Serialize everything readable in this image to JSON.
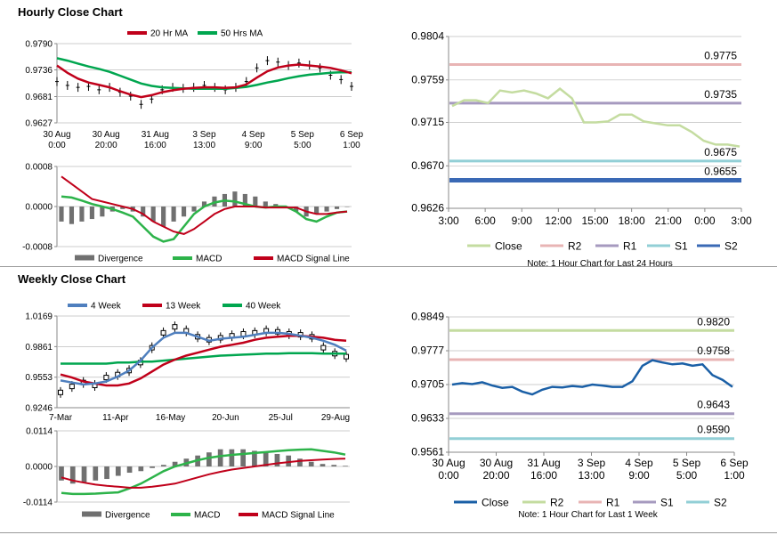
{
  "sections": {
    "hourly_title": "Hourly Close Chart",
    "weekly_title": "Weekly Close Chart"
  },
  "colors": {
    "ma_short": "#c0001a",
    "ma_long": "#00a64f",
    "ma_4wk": "#4f7fbe",
    "macd": "#2db34a",
    "signal": "#c0001a",
    "divergence": "#707070",
    "close": "#c4dca0",
    "r2": "#e8b4b4",
    "r1": "#a69abf",
    "s1": "#92cfd6",
    "s2": "#3a69b5",
    "weekly_close": "#1a5fa6",
    "weekly_r2": "#c4dca0",
    "weekly_r1": "#e8b4b4",
    "weekly_s1": "#a69abf",
    "weekly_s2": "#92cfd6"
  },
  "chart_data": [
    {
      "id": "hourly_price",
      "type": "line",
      "title": "Hourly Close Chart",
      "legend": [
        "20 Hr MA",
        "50 Hrs MA"
      ],
      "yticks": [
        "0.9790",
        "0.9736",
        "0.9681",
        "0.9627"
      ],
      "ylim": [
        0.9627,
        0.979
      ],
      "xticks": [
        [
          "30 Aug",
          "0:00"
        ],
        [
          "30 Aug",
          "20:00"
        ],
        [
          "31 Aug",
          "16:00"
        ],
        [
          "3 Sep",
          "13:00"
        ],
        [
          "4 Sep",
          "9:00"
        ],
        [
          "5 Sep",
          "5:00"
        ],
        [
          "6 Sep",
          "1:00"
        ]
      ],
      "series": [
        {
          "name": "Close",
          "values": [
            0.9712,
            0.9704,
            0.97,
            0.9702,
            0.9695,
            0.97,
            0.969,
            0.9682,
            0.9665,
            0.9676,
            0.9695,
            0.97,
            0.9698,
            0.97,
            0.9704,
            0.97,
            0.9695,
            0.97,
            0.9712,
            0.974,
            0.9755,
            0.9752,
            0.9745,
            0.975,
            0.9746,
            0.974,
            0.9725,
            0.9716,
            0.9702
          ]
        },
        {
          "name": "20 Hr MA",
          "values": [
            0.9745,
            0.973,
            0.9718,
            0.971,
            0.9705,
            0.97,
            0.9692,
            0.9685,
            0.968,
            0.9684,
            0.969,
            0.9694,
            0.9697,
            0.9699,
            0.97,
            0.97,
            0.9699,
            0.97,
            0.9706,
            0.972,
            0.9733,
            0.9741,
            0.9745,
            0.9747,
            0.9745,
            0.9743,
            0.974,
            0.9735,
            0.9729
          ]
        },
        {
          "name": "50 Hrs MA",
          "values": [
            0.976,
            0.9755,
            0.9749,
            0.9743,
            0.9738,
            0.9732,
            0.9724,
            0.9716,
            0.9708,
            0.9703,
            0.97,
            0.9699,
            0.9698,
            0.9697,
            0.9697,
            0.9697,
            0.9697,
            0.9699,
            0.9701,
            0.9705,
            0.971,
            0.9714,
            0.9719,
            0.9723,
            0.9726,
            0.9728,
            0.973,
            0.9731,
            0.9731
          ]
        }
      ]
    },
    {
      "id": "hourly_macd",
      "type": "bar+line",
      "legend": [
        "Divergence",
        "MACD",
        "MACD Signal Line"
      ],
      "yticks": [
        "0.0008",
        "0.0000",
        "-0.0008"
      ],
      "ylim": [
        -0.0008,
        0.0008
      ],
      "series": [
        {
          "name": "Divergence",
          "values": [
            -0.0003,
            -0.00035,
            -0.0003,
            -0.00025,
            -0.0002,
            -0.0001,
            -5e-05,
            -0.0001,
            -0.0002,
            -0.0003,
            -0.0004,
            -0.0003,
            -0.0002,
            -0.0001,
            0.0001,
            0.0002,
            0.00025,
            0.0003,
            0.00025,
            0.0002,
            0.0001,
            5e-05,
            0.0,
            -0.0001,
            -0.0002,
            -0.00015,
            -0.0001,
            -5e-05,
            0.0
          ]
        },
        {
          "name": "MACD",
          "values": [
            0.0002,
            0.00018,
            0.00012,
            5e-05,
            0.0,
            -5e-05,
            -0.00012,
            -0.0002,
            -0.0004,
            -0.0006,
            -0.0007,
            -0.00065,
            -0.0004,
            -0.00015,
            0.0,
            8e-05,
            0.00012,
            0.0001,
            5e-05,
            0.0,
            -2e-05,
            0.0,
            0.0,
            -0.0001,
            -0.00025,
            -0.0003,
            -0.0002,
            -0.00012,
            -0.0001
          ]
        },
        {
          "name": "MACD Signal Line",
          "values": [
            0.0006,
            0.00045,
            0.0003,
            0.00015,
            0.0001,
            5e-05,
            0.0,
            -5e-05,
            -0.00015,
            -0.0003,
            -0.0004,
            -0.0005,
            -0.00055,
            -0.00045,
            -0.0003,
            -0.00015,
            -5e-05,
            0.0,
            0.0,
            0.0,
            -2e-05,
            -2e-05,
            -2e-05,
            -2e-05,
            -0.0001,
            -0.00015,
            -0.00015,
            -0.00012,
            -0.0001
          ]
        }
      ]
    },
    {
      "id": "hourly_levels",
      "type": "line",
      "note": "Note: 1 Hour Chart for Last 24 Hours",
      "legend": [
        "Close",
        "R2",
        "R1",
        "S1",
        "S2"
      ],
      "yticks": [
        "0.9804",
        "0.9759",
        "0.9715",
        "0.9670",
        "0.9626"
      ],
      "ylim": [
        0.9626,
        0.9804
      ],
      "xticks": [
        "3:00",
        "6:00",
        "9:00",
        "12:00",
        "15:00",
        "18:00",
        "21:00",
        "0:00",
        "3:00"
      ],
      "x": [
        0,
        1,
        2,
        3,
        4,
        5,
        6,
        7,
        8,
        9,
        10,
        11,
        12,
        13,
        14,
        15,
        16,
        17,
        18,
        19,
        20,
        21,
        22,
        23,
        24
      ],
      "close": [
        0.9732,
        0.9738,
        0.9738,
        0.9735,
        0.9748,
        0.9746,
        0.9748,
        0.9745,
        0.974,
        0.975,
        0.974,
        0.9715,
        0.9715,
        0.9716,
        0.9723,
        0.9723,
        0.9716,
        0.9714,
        0.9712,
        0.9712,
        0.9705,
        0.9696,
        0.9692,
        0.9692,
        0.969
      ],
      "levels": [
        {
          "name": "R2",
          "value": 0.9775,
          "label": "0.9775"
        },
        {
          "name": "R1",
          "value": 0.9735,
          "label": "0.9735"
        },
        {
          "name": "S1",
          "value": 0.9675,
          "label": "0.9675"
        },
        {
          "name": "S2",
          "value": 0.9655,
          "label": "0.9655"
        }
      ]
    },
    {
      "id": "weekly_price",
      "type": "line",
      "title": "Weekly Close Chart",
      "legend": [
        "4 Week",
        "13 Week",
        "40 Week"
      ],
      "yticks": [
        "1.0169",
        "0.9861",
        "0.9553",
        "0.9246"
      ],
      "ylim": [
        0.9246,
        1.0169
      ],
      "xticks": [
        "7-Mar",
        "11-Apr",
        "16-May",
        "20-Jun",
        "25-Jul",
        "29-Aug"
      ],
      "series": [
        {
          "name": "Close",
          "values": [
            0.94,
            0.946,
            0.95,
            0.947,
            0.955,
            0.958,
            0.962,
            0.97,
            0.985,
            1.0,
            1.006,
            1.002,
            0.996,
            0.993,
            0.995,
            0.997,
            0.999,
            1.0,
            1.002,
            1.001,
            0.999,
            0.998,
            0.996,
            0.985,
            0.979,
            0.976
          ]
        },
        {
          "name": "4 Week",
          "values": [
            0.952,
            0.95,
            0.948,
            0.949,
            0.951,
            0.956,
            0.962,
            0.972,
            0.985,
            0.995,
            1.0,
            1.0,
            0.996,
            0.992,
            0.994,
            0.995,
            0.996,
            0.998,
            1.0,
            1.0,
            0.999,
            0.997,
            0.995,
            0.992,
            0.988,
            0.982
          ]
        },
        {
          "name": "13 Week",
          "values": [
            0.958,
            0.955,
            0.951,
            0.949,
            0.947,
            0.947,
            0.949,
            0.954,
            0.961,
            0.968,
            0.973,
            0.977,
            0.98,
            0.983,
            0.986,
            0.988,
            0.99,
            0.993,
            0.995,
            0.996,
            0.997,
            0.997,
            0.996,
            0.995,
            0.993,
            0.992
          ]
        },
        {
          "name": "40 Week",
          "values": [
            0.969,
            0.969,
            0.969,
            0.969,
            0.969,
            0.97,
            0.97,
            0.971,
            0.971,
            0.972,
            0.973,
            0.974,
            0.975,
            0.976,
            0.977,
            0.9775,
            0.978,
            0.9785,
            0.979,
            0.979,
            0.9795,
            0.9795,
            0.9795,
            0.979,
            0.979,
            0.979
          ]
        }
      ]
    },
    {
      "id": "weekly_macd",
      "type": "bar+line",
      "legend": [
        "Divergence",
        "MACD",
        "MACD Signal Line"
      ],
      "yticks": [
        "0.0114",
        "0.0000",
        "-0.0114"
      ],
      "ylim": [
        -0.0114,
        0.0114
      ],
      "series": [
        {
          "name": "Divergence",
          "values": [
            -0.0045,
            -0.0055,
            -0.005,
            -0.0045,
            -0.004,
            -0.003,
            -0.002,
            -0.0015,
            -0.0005,
            0.0005,
            0.0015,
            0.0025,
            0.0035,
            0.0045,
            0.0055,
            0.0055,
            0.0055,
            0.005,
            0.0045,
            0.004,
            0.0035,
            0.0025,
            0.0015,
            0.0008,
            0.0005,
            0.0002
          ]
        },
        {
          "name": "MACD",
          "values": [
            -0.0085,
            -0.0088,
            -0.0088,
            -0.0087,
            -0.0085,
            -0.0083,
            -0.007,
            -0.0055,
            -0.0035,
            -0.0015,
            0.0,
            0.001,
            0.002,
            0.0028,
            0.0033,
            0.0037,
            0.004,
            0.0043,
            0.0046,
            0.0049,
            0.0052,
            0.0054,
            0.0055,
            0.005,
            0.0045,
            0.0038
          ]
        },
        {
          "name": "MACD Signal Line",
          "values": [
            -0.0035,
            -0.0045,
            -0.0052,
            -0.0058,
            -0.0062,
            -0.0065,
            -0.0068,
            -0.0068,
            -0.0065,
            -0.006,
            -0.0055,
            -0.0045,
            -0.0035,
            -0.0025,
            -0.0017,
            -0.001,
            -0.0005,
            0.0,
            0.0005,
            0.001,
            0.0014,
            0.0018,
            0.002,
            0.0022,
            0.0024,
            0.0025
          ]
        }
      ]
    },
    {
      "id": "weekly_levels",
      "type": "line",
      "note": "Note: 1 Hour Chart for Last 1 Week",
      "legend": [
        "Close",
        "R2",
        "R1",
        "S1",
        "S2"
      ],
      "yticks": [
        "0.9849",
        "0.9777",
        "0.9705",
        "0.9633",
        "0.9561"
      ],
      "ylim": [
        0.9561,
        0.9849
      ],
      "xticks": [
        [
          "30 Aug",
          "0:00"
        ],
        [
          "30 Aug",
          "20:00"
        ],
        [
          "31 Aug",
          "16:00"
        ],
        [
          "3 Sep",
          "13:00"
        ],
        [
          "4 Sep",
          "9:00"
        ],
        [
          "5 Sep",
          "5:00"
        ],
        [
          "6 Sep",
          "1:00"
        ]
      ],
      "close": [
        0.9705,
        0.9708,
        0.9706,
        0.971,
        0.9703,
        0.9698,
        0.97,
        0.969,
        0.9684,
        0.9694,
        0.97,
        0.9699,
        0.9702,
        0.97,
        0.9705,
        0.9703,
        0.97,
        0.97,
        0.9712,
        0.9745,
        0.9757,
        0.9752,
        0.9748,
        0.975,
        0.9745,
        0.9748,
        0.9725,
        0.9715,
        0.97
      ],
      "levels": [
        {
          "name": "R2",
          "value": 0.982,
          "label": "0.9820"
        },
        {
          "name": "R1",
          "value": 0.9758,
          "label": "0.9758"
        },
        {
          "name": "S1",
          "value": 0.9643,
          "label": "0.9643"
        },
        {
          "name": "S2",
          "value": 0.959,
          "label": "0.9590"
        }
      ]
    }
  ]
}
